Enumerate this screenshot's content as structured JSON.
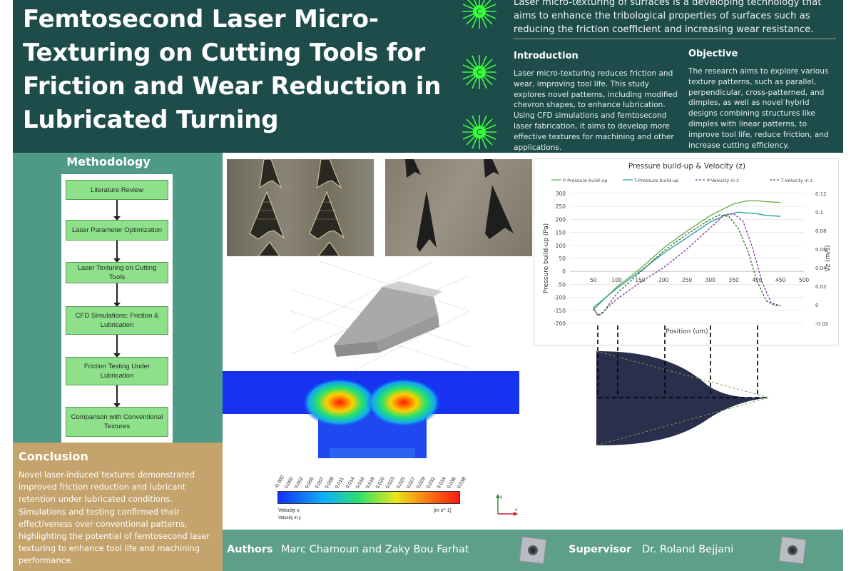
{
  "header": {
    "title": "Femtosecond Laser Micro-Texturing on Cutting Tools for Friction and Wear Reduction in Lubricated Turning",
    "intro_text": "Laser micro-texturing of surfaces is a developing technology that aims to enhance the tribological properties of surfaces such as reducing the friction coefficient and increasing wear resistance.",
    "laser_icon_label": "C"
  },
  "introduction": {
    "heading": "Introduction",
    "text": "Laser micro-texturing reduces friction and wear, improving tool life. This study explores novel patterns, including modified chevron shapes, to enhance lubrication. Using CFD simulations and femtosecond laser fabrication, it aims to develop more effective textures for machining and other applications."
  },
  "objective": {
    "heading": "Objective",
    "text": "The research aims to explore various texture patterns, such as parallel, perpendicular, cross-patterned, and dimples, as well as novel hybrid designs combining structures like dimples with linear patterns, to improve tool life, reduce friction, and increase cutting efficiency."
  },
  "methodology": {
    "heading": "Methodology",
    "steps": [
      "Literature Review",
      "Laser Parameter Optimization",
      "Laser Texturing on Cutting Tools",
      "CFD Simulations: Friction & Lubrication",
      "Friction Testing Under Lubrication",
      "Comparison with Conventional Textures"
    ]
  },
  "conclusion": {
    "heading": "Conclusion",
    "text": "Novel laser-induced textures demonstrated improved friction reduction and lubricant retention under lubricated conditions. Simulations and testing confirmed their effectiveness over conventional patterns, highlighting the potential of femtosecond laser texturing to enhance tool life and machining performance."
  },
  "velocity_scale": {
    "ticks": [
      "-0.002",
      "0.000",
      "0.002",
      "0.005",
      "0.007",
      "0.009",
      "0.011",
      "0.014",
      "0.016",
      "0.018",
      "0.020",
      "0.023",
      "0.025",
      "0.027",
      "0.029",
      "0.032",
      "0.034",
      "0.036",
      "0.038"
    ],
    "label": "Velocity v",
    "unit": "[m s^-1]",
    "sublabel": "Velocity in y"
  },
  "axes_icon": {
    "x": "x",
    "y": "y"
  },
  "chart_data": {
    "type": "line",
    "title": "Pressure build-up & Velocity (z)",
    "xlabel": "Position (um)",
    "ylabel": "Pressure build-up (Pa)",
    "y2label": "Vz (m/s)",
    "xlim": [
      0,
      500
    ],
    "ylim": [
      -200,
      300
    ],
    "y2lim": [
      -0.02,
      0.12
    ],
    "xticks": [
      50,
      100,
      150,
      200,
      250,
      300,
      350,
      400,
      450,
      500
    ],
    "yticks": [
      300,
      250,
      200,
      150,
      100,
      50,
      0,
      -50,
      -100,
      -150,
      -200
    ],
    "y2ticks": [
      0.12,
      0.1,
      0.08,
      0.06,
      0.04,
      0.02,
      0,
      -0.02
    ],
    "grid": true,
    "legend": "top",
    "series": [
      {
        "name": "P-Pressure build-up",
        "axis": "left",
        "color": "#6ab04c",
        "dash": false,
        "x": [
          50,
          60,
          80,
          100,
          150,
          200,
          250,
          300,
          350,
          380,
          400,
          420,
          450
        ],
        "y": [
          -150,
          -130,
          -95,
          -60,
          10,
          90,
          155,
          215,
          260,
          272,
          272,
          268,
          265
        ]
      },
      {
        "name": "T-Pressure build-up",
        "axis": "left",
        "color": "#2f9fa8",
        "dash": false,
        "x": [
          50,
          60,
          80,
          100,
          150,
          200,
          250,
          300,
          330,
          360,
          400,
          420,
          450
        ],
        "y": [
          -140,
          -125,
          -95,
          -65,
          0,
          70,
          130,
          190,
          215,
          228,
          222,
          215,
          212
        ]
      },
      {
        "name": "P-Velocity in z",
        "axis": "right",
        "color": "#8b3fa8",
        "dash": true,
        "x": [
          50,
          60,
          70,
          100,
          150,
          200,
          250,
          300,
          330,
          350,
          370,
          390,
          410,
          430,
          450
        ],
        "y": [
          -0.005,
          -0.011,
          -0.008,
          0.006,
          0.024,
          0.04,
          0.06,
          0.083,
          0.097,
          0.098,
          0.09,
          0.062,
          0.025,
          0.002,
          -0.001
        ]
      },
      {
        "name": "T-Velocity in z",
        "axis": "right",
        "color": "#3f6f3f",
        "dash": true,
        "x": [
          50,
          60,
          70,
          100,
          150,
          200,
          250,
          300,
          320,
          340,
          360,
          380,
          400,
          420,
          440,
          450
        ],
        "y": [
          -0.003,
          -0.012,
          -0.009,
          0.012,
          0.035,
          0.058,
          0.076,
          0.092,
          0.097,
          0.095,
          0.082,
          0.058,
          0.025,
          0.004,
          -0.001,
          -0.001
        ]
      }
    ]
  },
  "footer": {
    "authors_label": "Authors",
    "authors_value": "Marc Chamoun and Zaky Bou Farhat",
    "supervisor_label": "Supervisor",
    "supervisor_value": "Dr. Roland Bejjani"
  },
  "colors": {
    "header_bg": "#1d4c4b",
    "methodology_bg": "#4e9a86",
    "conclusion_bg": "#c4a36c",
    "footer_bg": "#5d9f88",
    "step_fill": "#8ee08b",
    "laser_green": "#39ff3a"
  }
}
